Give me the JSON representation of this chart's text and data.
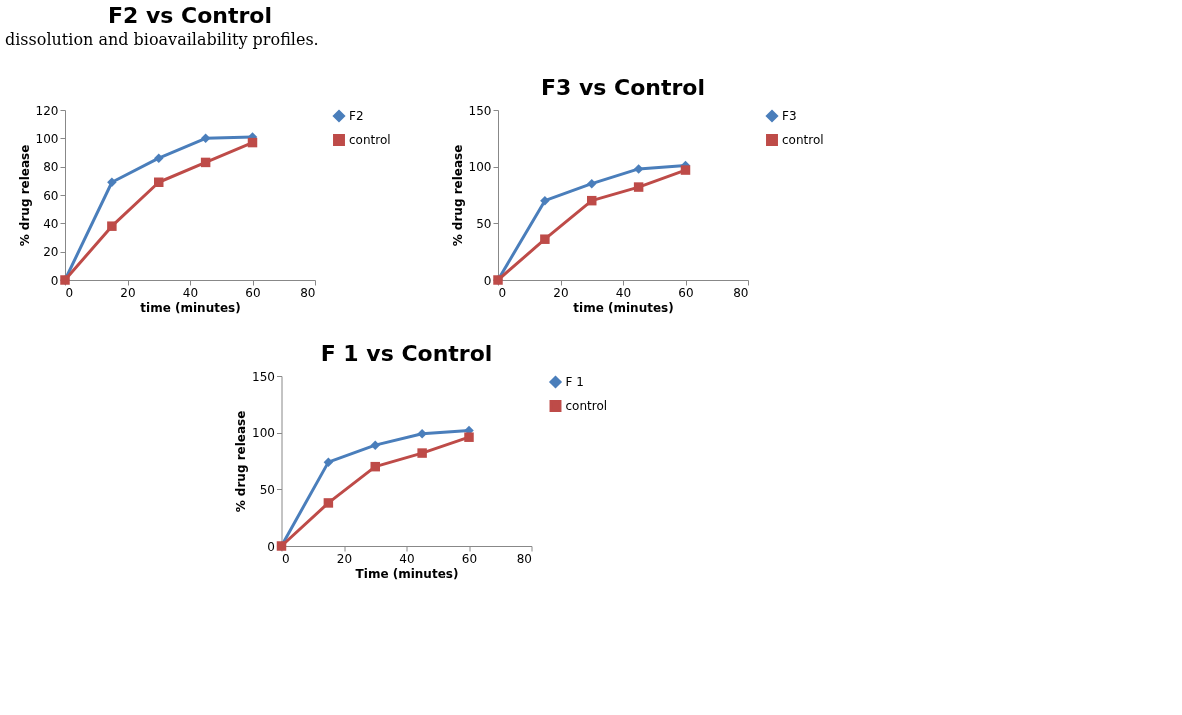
{
  "chart_data": [
    {
      "type": "line",
      "title": "F2 vs Control",
      "xlabel": "time (minutes)",
      "ylabel": "% drug release",
      "annotations": [
        "dissolution and bioavailability profiles."
      ],
      "x": [
        0,
        15,
        30,
        45,
        60
      ],
      "xlim": [
        0,
        80
      ],
      "xticks": [
        0,
        20,
        40,
        60,
        80
      ],
      "ylim": [
        0,
        120
      ],
      "yticks": [
        0,
        20,
        40,
        60,
        80,
        100,
        120
      ],
      "legend": "right",
      "grid": false,
      "series": [
        {
          "name": "F2",
          "color": "#4a7ebb",
          "marker": "diamond",
          "values": [
            0,
            69,
            86,
            100,
            101
          ]
        },
        {
          "name": "control",
          "color": "#be4b48",
          "marker": "square",
          "values": [
            0,
            38,
            69,
            83,
            97
          ]
        }
      ]
    },
    {
      "type": "line",
      "title": "F3 vs Control",
      "xlabel": "time (minutes)",
      "ylabel": "% drug release",
      "x": [
        0,
        15,
        30,
        45,
        60
      ],
      "xlim": [
        0,
        80
      ],
      "xticks": [
        0,
        20,
        40,
        60,
        80
      ],
      "ylim": [
        0,
        150
      ],
      "yticks": [
        0,
        50,
        100,
        150
      ],
      "legend": "right",
      "grid": false,
      "series": [
        {
          "name": "F3",
          "color": "#4a7ebb",
          "marker": "diamond",
          "values": [
            0,
            70,
            85,
            98,
            101
          ]
        },
        {
          "name": "control",
          "color": "#be4b48",
          "marker": "square",
          "values": [
            0,
            36,
            70,
            82,
            97
          ]
        }
      ]
    },
    {
      "type": "line",
      "title": "F 1 vs Control",
      "xlabel": "Time (minutes)",
      "ylabel": "% drug release",
      "x": [
        0,
        15,
        30,
        45,
        60
      ],
      "xlim": [
        0,
        80
      ],
      "xticks": [
        0,
        20,
        40,
        60,
        80
      ],
      "ylim": [
        0,
        150
      ],
      "yticks": [
        0,
        50,
        100,
        150
      ],
      "legend": "right",
      "grid": false,
      "series": [
        {
          "name": "F 1",
          "color": "#4a7ebb",
          "marker": "diamond",
          "values": [
            0,
            74,
            89,
            99,
            102
          ]
        },
        {
          "name": "control",
          "color": "#be4b48",
          "marker": "square",
          "values": [
            0,
            38,
            70,
            82,
            96
          ]
        }
      ]
    }
  ]
}
